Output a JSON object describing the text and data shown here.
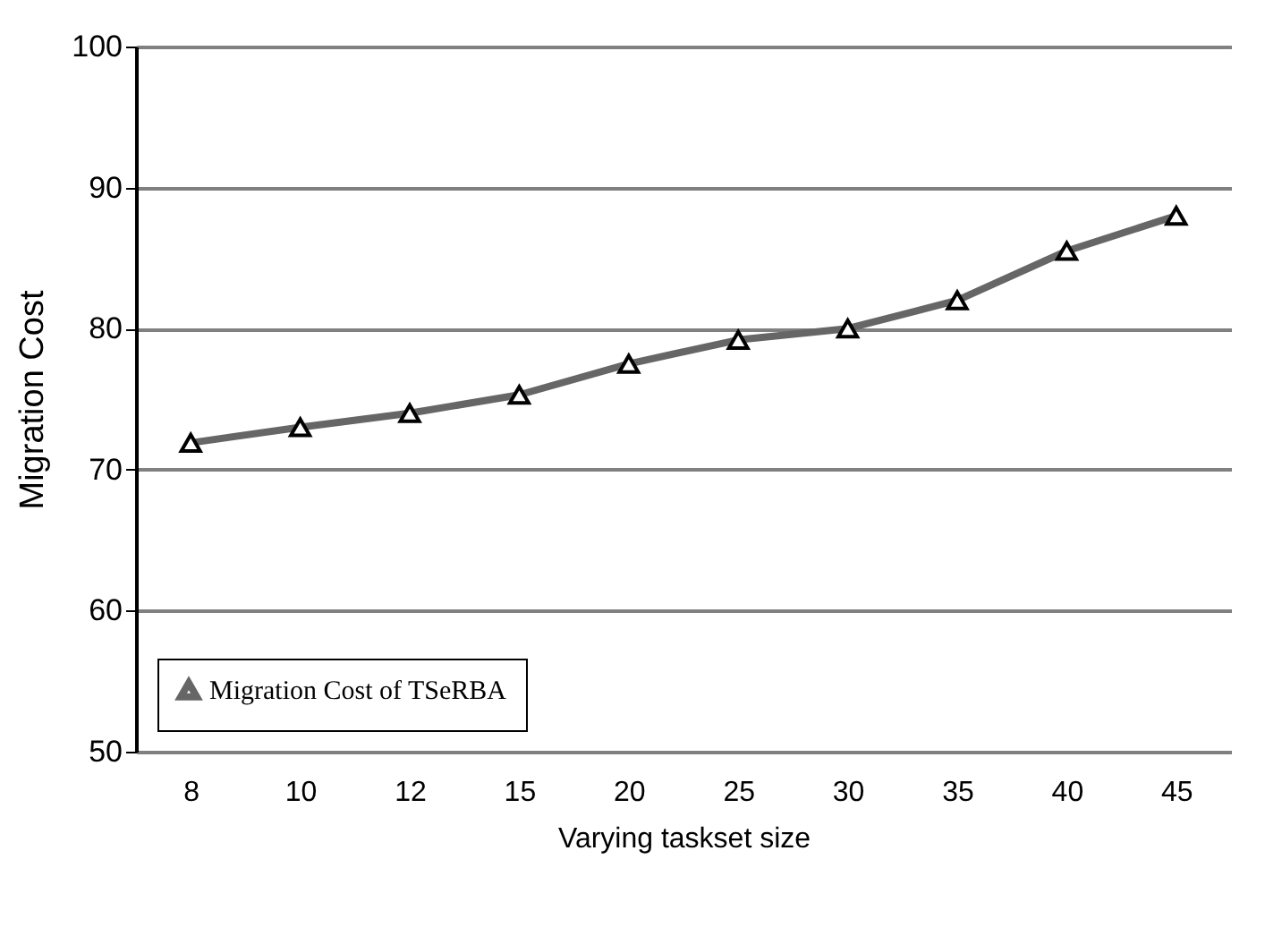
{
  "chart_data": {
    "type": "line",
    "xlabel": "Varying taskset size",
    "ylabel": "Migration Cost",
    "categories": [
      "8",
      "10",
      "12",
      "15",
      "20",
      "25",
      "30",
      "35",
      "40",
      "45"
    ],
    "series": [
      {
        "name": "Migration Cost of TSeRBA",
        "color": "#666666",
        "values": [
          71.9,
          73,
          74,
          75.3,
          77.5,
          79.2,
          80,
          82,
          85.5,
          88
        ]
      }
    ],
    "ylim": [
      50,
      100
    ],
    "yticks": [
      50,
      60,
      70,
      80,
      90,
      100
    ],
    "grid": "y",
    "legend": "bottom left",
    "marker": "triangle",
    "line_style": "solid"
  }
}
